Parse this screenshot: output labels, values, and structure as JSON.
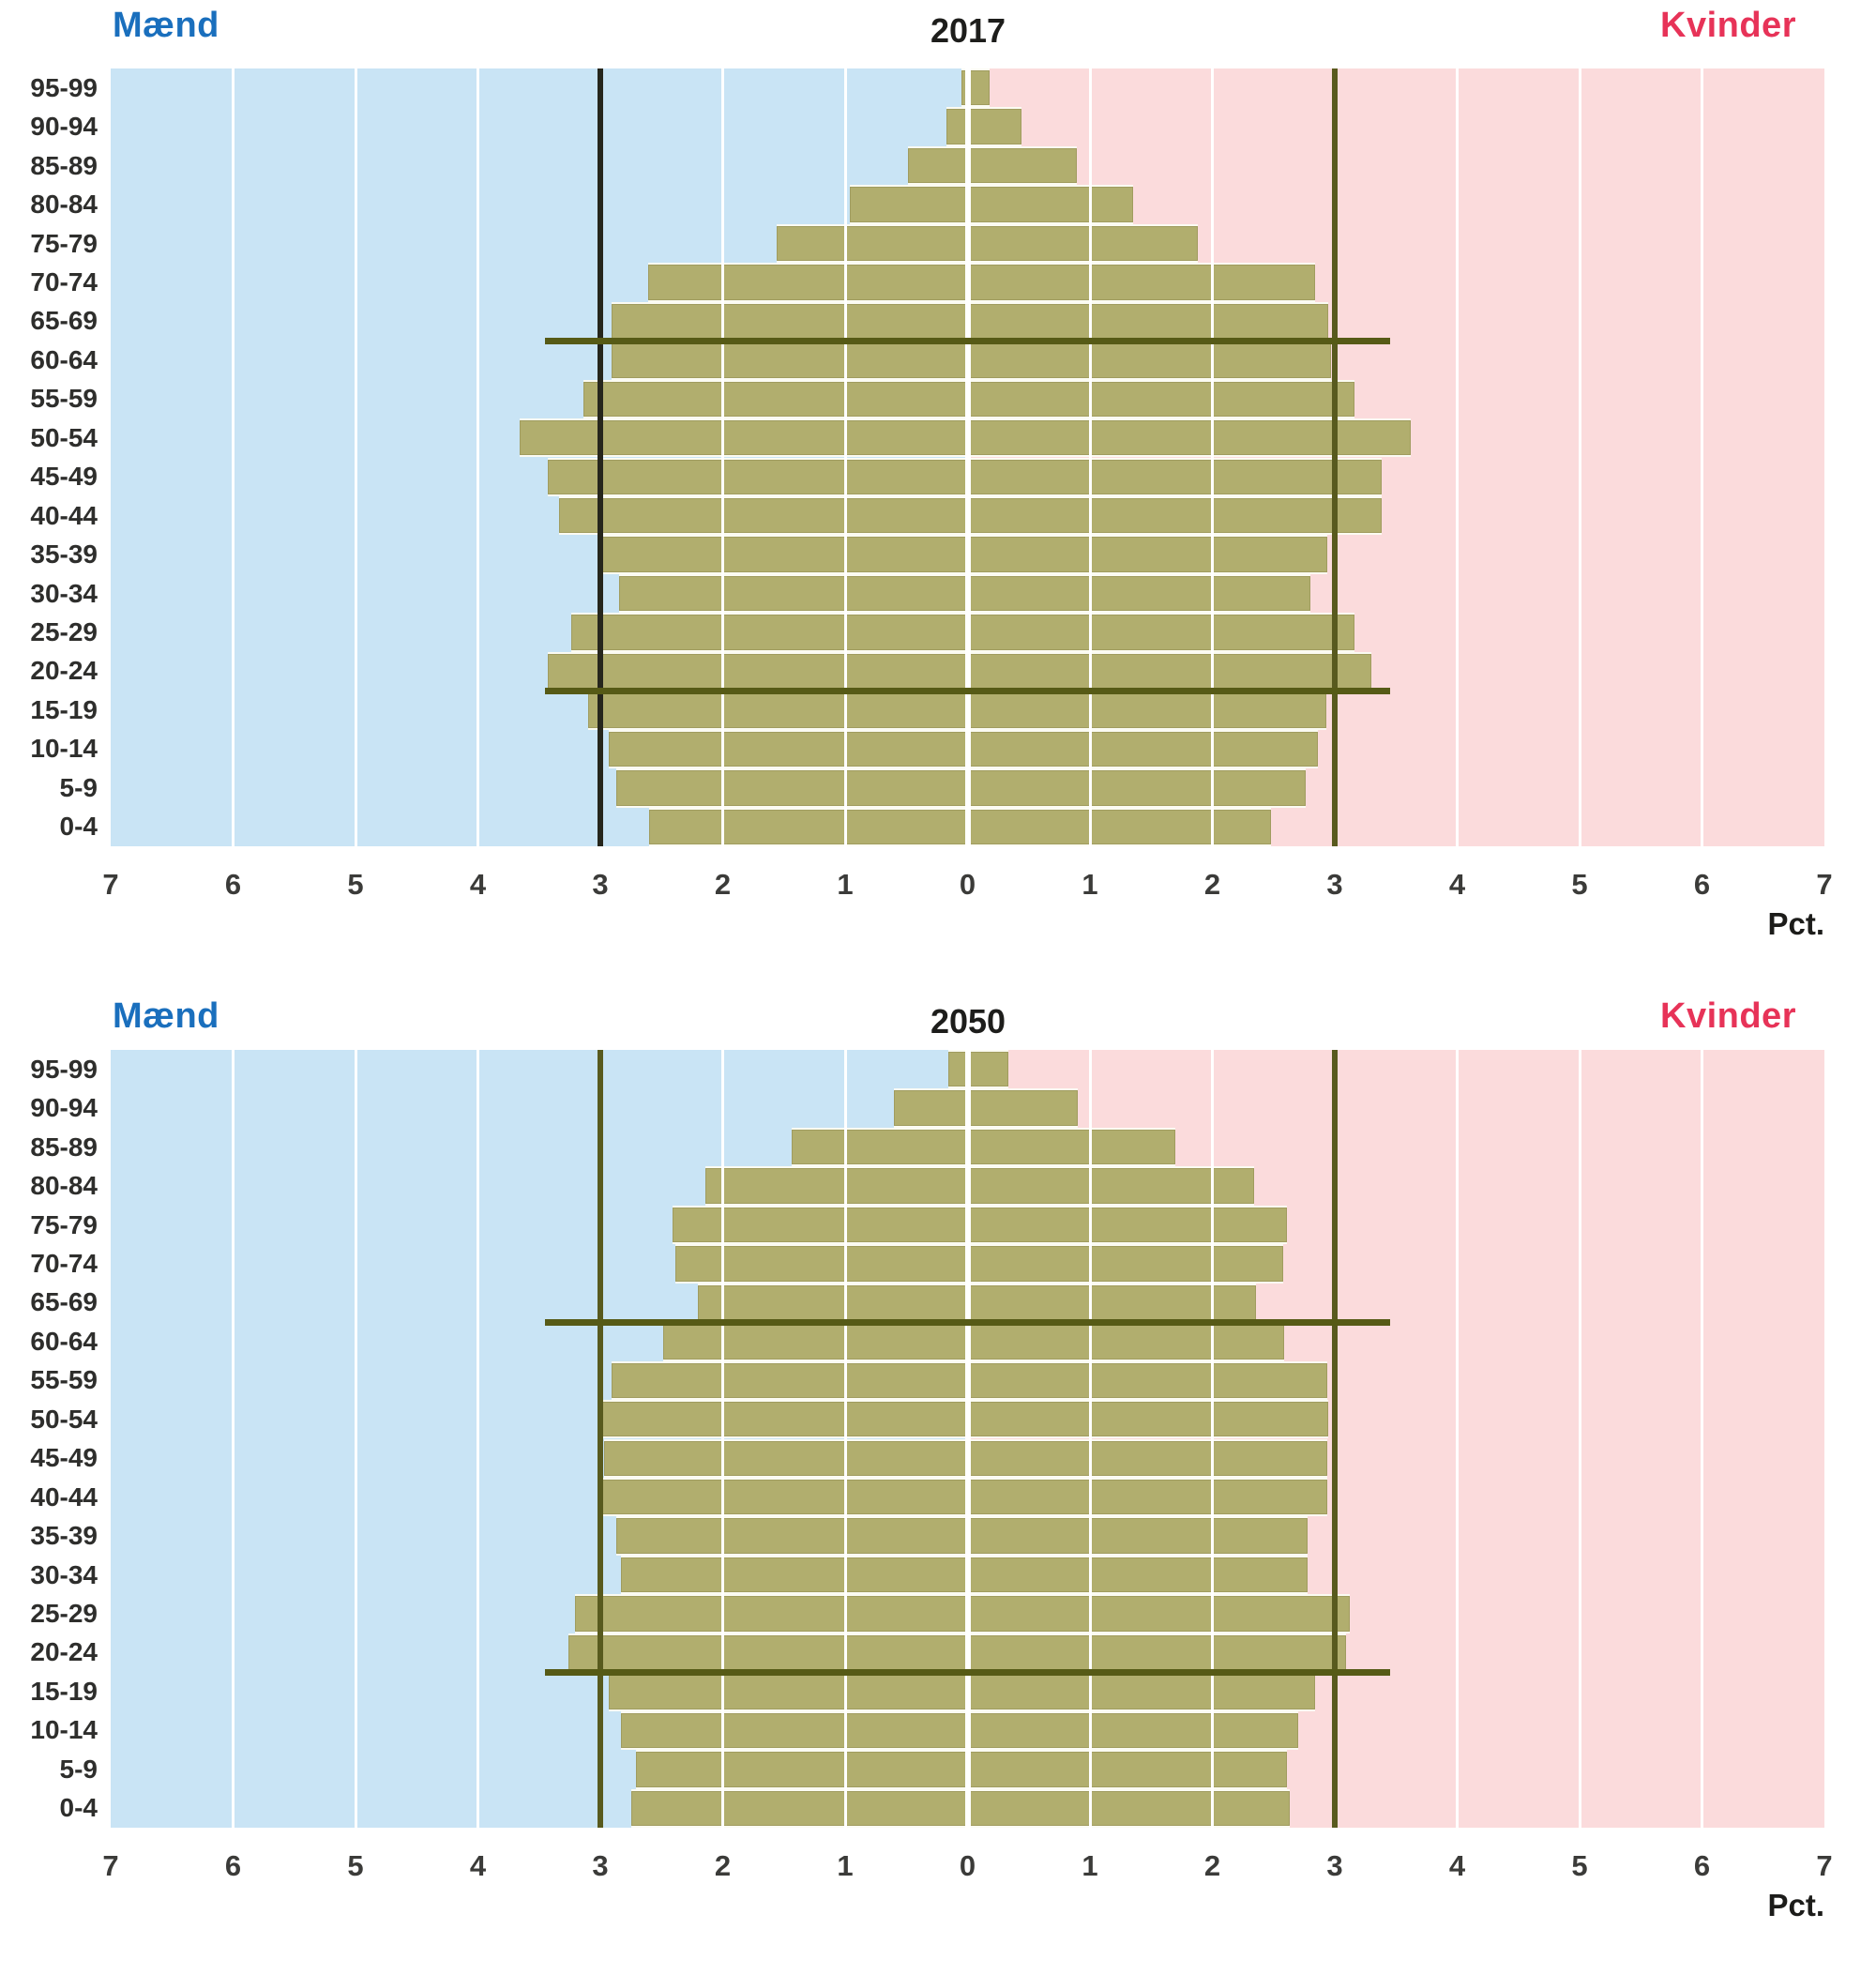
{
  "colors": {
    "men_background": "#c9e4f5",
    "women_background": "#fbdbdc",
    "bar_fill": "#b1ae6e",
    "bar_separator": "#fbfbf2",
    "gridline": "#ffffff",
    "reference_line_dark": "#26261c",
    "reference_line_olive": "#585a1e",
    "marker_line": "#565a16",
    "men_label_color": "#1a6fbd",
    "women_label_color": "#e73358",
    "title_color": "#1d1d1b",
    "tick_color": "#3b3b39"
  },
  "chart_data": [
    {
      "type": "bar",
      "variant": "population-pyramid",
      "title": "2017",
      "left_series_label": "Mænd",
      "right_series_label": "Kvinder",
      "xlabel": "Pct.",
      "x_max": 7,
      "x_tick_labels": [
        "7",
        "6",
        "5",
        "4",
        "3",
        "2",
        "1",
        "0",
        "1",
        "2",
        "3",
        "4",
        "5",
        "6",
        "7"
      ],
      "reference_value": 3,
      "grid": true,
      "categories_top_to_bottom": [
        "95-99",
        "90-94",
        "85-89",
        "80-84",
        "75-79",
        "70-74",
        "65-69",
        "60-64",
        "55-59",
        "50-54",
        "45-49",
        "40-44",
        "35-39",
        "30-34",
        "25-29",
        "20-24",
        "15-19",
        "10-14",
        "5-9",
        "0-4"
      ],
      "series": [
        {
          "name": "Mænd",
          "side": "left",
          "values": [
            0.05,
            0.17,
            0.49,
            0.96,
            1.56,
            2.61,
            2.91,
            2.91,
            3.14,
            3.66,
            3.43,
            3.34,
            2.99,
            2.85,
            3.24,
            3.43,
            3.1,
            2.93,
            2.87,
            2.6
          ]
        },
        {
          "name": "Kvinder",
          "side": "right",
          "values": [
            0.18,
            0.44,
            0.89,
            1.35,
            1.88,
            2.84,
            2.95,
            2.97,
            3.16,
            3.62,
            3.38,
            3.38,
            2.94,
            2.8,
            3.16,
            3.3,
            2.93,
            2.86,
            2.76,
            2.48
          ]
        }
      ],
      "marker_lines": {
        "upper_after_category": "65-69",
        "lower_after_category": "20-24",
        "extent": 3.45
      }
    },
    {
      "type": "bar",
      "variant": "population-pyramid",
      "title": "2050",
      "left_series_label": "Mænd",
      "right_series_label": "Kvinder",
      "xlabel": "Pct.",
      "x_max": 7,
      "x_tick_labels": [
        "7",
        "6",
        "5",
        "4",
        "3",
        "2",
        "1",
        "0",
        "1",
        "2",
        "3",
        "4",
        "5",
        "6",
        "7"
      ],
      "reference_value": 3,
      "grid": true,
      "categories_top_to_bottom": [
        "95-99",
        "90-94",
        "85-89",
        "80-84",
        "75-79",
        "70-74",
        "65-69",
        "60-64",
        "55-59",
        "50-54",
        "45-49",
        "40-44",
        "35-39",
        "30-34",
        "25-29",
        "20-24",
        "15-19",
        "10-14",
        "5-9",
        "0-4"
      ],
      "series": [
        {
          "name": "Mænd",
          "side": "left",
          "values": [
            0.16,
            0.6,
            1.44,
            2.14,
            2.41,
            2.39,
            2.2,
            2.49,
            2.91,
            3.02,
            2.97,
            3.02,
            2.87,
            2.83,
            3.21,
            3.26,
            2.93,
            2.83,
            2.71,
            2.75
          ]
        },
        {
          "name": "Kvinder",
          "side": "right",
          "values": [
            0.33,
            0.9,
            1.7,
            2.34,
            2.61,
            2.58,
            2.36,
            2.59,
            2.94,
            2.95,
            2.94,
            2.94,
            2.78,
            2.78,
            3.12,
            3.09,
            2.84,
            2.7,
            2.61,
            2.63
          ]
        }
      ],
      "marker_lines": {
        "upper_after_category": "65-69",
        "lower_after_category": "20-24",
        "extent": 3.45
      }
    }
  ]
}
